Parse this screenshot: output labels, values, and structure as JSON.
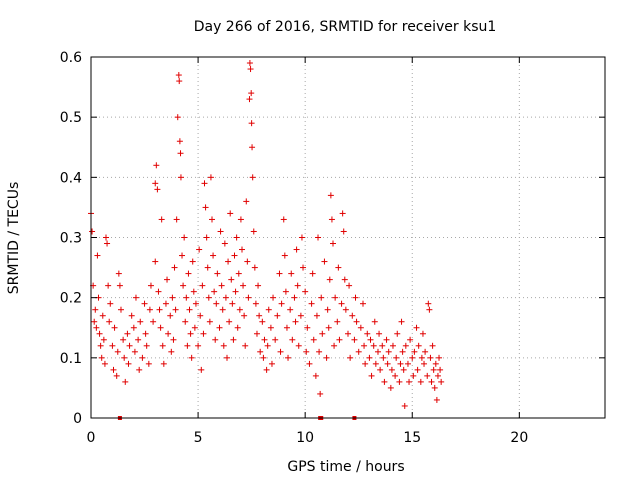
{
  "chart_data": {
    "type": "scatter",
    "title": "Day 266 of 2016, SRMTID for receiver ksu1",
    "xlabel": "GPS time / hours",
    "ylabel": "SRMTID / TECUs",
    "xlim": [
      0,
      24
    ],
    "ylim": [
      0,
      0.6
    ],
    "xticks": [
      0,
      5,
      10,
      15,
      20
    ],
    "xtick_labels": [
      "0",
      "5",
      "10",
      "15",
      "20"
    ],
    "yticks": [
      0,
      0.1,
      0.2,
      0.3,
      0.4,
      0.5,
      0.6
    ],
    "ytick_labels": [
      "0",
      "0.1",
      "0.2",
      "0.3",
      "0.4",
      "0.5",
      "0.6"
    ],
    "grid": true,
    "legend": "none",
    "marker": "plus",
    "color": "#e00000",
    "series": [
      {
        "points": [
          [
            0.0,
            0.34
          ],
          [
            0.05,
            0.31
          ],
          [
            0.1,
            0.22
          ],
          [
            0.15,
            0.16
          ],
          [
            0.2,
            0.18
          ],
          [
            0.25,
            0.15
          ],
          [
            0.3,
            0.27
          ],
          [
            0.35,
            0.2
          ],
          [
            0.4,
            0.14
          ],
          [
            0.45,
            0.12
          ],
          [
            0.5,
            0.1
          ],
          [
            0.55,
            0.17
          ],
          [
            0.6,
            0.13
          ],
          [
            0.65,
            0.09
          ],
          [
            0.7,
            0.3
          ],
          [
            0.75,
            0.29
          ],
          [
            0.8,
            0.22
          ],
          [
            0.85,
            0.16
          ],
          [
            0.9,
            0.19
          ],
          [
            1.0,
            0.12
          ],
          [
            1.05,
            0.08
          ],
          [
            1.1,
            0.15
          ],
          [
            1.2,
            0.07
          ],
          [
            1.25,
            0.11
          ],
          [
            1.3,
            0.24
          ],
          [
            1.35,
            0.22
          ],
          [
            1.4,
            0.18
          ],
          [
            1.5,
            0.13
          ],
          [
            1.55,
            0.1
          ],
          [
            1.6,
            0.06
          ],
          [
            1.7,
            0.14
          ],
          [
            1.75,
            0.09
          ],
          [
            1.8,
            0.12
          ],
          [
            1.9,
            0.17
          ],
          [
            2.0,
            0.15
          ],
          [
            2.05,
            0.11
          ],
          [
            2.1,
            0.2
          ],
          [
            2.2,
            0.13
          ],
          [
            2.25,
            0.08
          ],
          [
            2.3,
            0.16
          ],
          [
            2.4,
            0.1
          ],
          [
            2.5,
            0.19
          ],
          [
            2.55,
            0.14
          ],
          [
            2.6,
            0.12
          ],
          [
            2.7,
            0.09
          ],
          [
            2.75,
            0.18
          ],
          [
            2.8,
            0.22
          ],
          [
            2.9,
            0.16
          ],
          [
            3.0,
            0.26
          ],
          [
            3.0,
            0.39
          ],
          [
            3.05,
            0.42
          ],
          [
            3.1,
            0.38
          ],
          [
            3.15,
            0.21
          ],
          [
            3.2,
            0.18
          ],
          [
            3.25,
            0.15
          ],
          [
            3.3,
            0.33
          ],
          [
            3.35,
            0.12
          ],
          [
            3.4,
            0.09
          ],
          [
            3.5,
            0.19
          ],
          [
            3.55,
            0.23
          ],
          [
            3.6,
            0.14
          ],
          [
            3.7,
            0.17
          ],
          [
            3.75,
            0.11
          ],
          [
            3.8,
            0.2
          ],
          [
            3.85,
            0.13
          ],
          [
            3.9,
            0.25
          ],
          [
            3.95,
            0.18
          ],
          [
            4.0,
            0.33
          ],
          [
            4.05,
            0.5
          ],
          [
            4.1,
            0.57
          ],
          [
            4.12,
            0.56
          ],
          [
            4.15,
            0.46
          ],
          [
            4.18,
            0.44
          ],
          [
            4.2,
            0.4
          ],
          [
            4.25,
            0.27
          ],
          [
            4.3,
            0.22
          ],
          [
            4.35,
            0.3
          ],
          [
            4.4,
            0.16
          ],
          [
            4.45,
            0.2
          ],
          [
            4.5,
            0.12
          ],
          [
            4.55,
            0.24
          ],
          [
            4.6,
            0.18
          ],
          [
            4.65,
            0.14
          ],
          [
            4.7,
            0.1
          ],
          [
            4.75,
            0.26
          ],
          [
            4.8,
            0.21
          ],
          [
            4.85,
            0.15
          ],
          [
            4.9,
            0.19
          ],
          [
            5.0,
            0.12
          ],
          [
            5.05,
            0.28
          ],
          [
            5.1,
            0.17
          ],
          [
            5.15,
            0.08
          ],
          [
            5.2,
            0.22
          ],
          [
            5.25,
            0.14
          ],
          [
            5.3,
            0.39
          ],
          [
            5.35,
            0.35
          ],
          [
            5.4,
            0.3
          ],
          [
            5.45,
            0.25
          ],
          [
            5.5,
            0.2
          ],
          [
            5.55,
            0.16
          ],
          [
            5.6,
            0.4
          ],
          [
            5.65,
            0.33
          ],
          [
            5.7,
            0.27
          ],
          [
            5.75,
            0.21
          ],
          [
            5.8,
            0.13
          ],
          [
            5.85,
            0.19
          ],
          [
            5.9,
            0.24
          ],
          [
            6.0,
            0.15
          ],
          [
            6.05,
            0.31
          ],
          [
            6.1,
            0.22
          ],
          [
            6.15,
            0.18
          ],
          [
            6.2,
            0.12
          ],
          [
            6.25,
            0.29
          ],
          [
            6.3,
            0.2
          ],
          [
            6.35,
            0.1
          ],
          [
            6.4,
            0.26
          ],
          [
            6.45,
            0.16
          ],
          [
            6.5,
            0.34
          ],
          [
            6.55,
            0.23
          ],
          [
            6.6,
            0.19
          ],
          [
            6.65,
            0.13
          ],
          [
            6.7,
            0.27
          ],
          [
            6.75,
            0.21
          ],
          [
            6.8,
            0.3
          ],
          [
            6.85,
            0.15
          ],
          [
            6.9,
            0.24
          ],
          [
            6.95,
            0.18
          ],
          [
            7.0,
            0.33
          ],
          [
            7.05,
            0.28
          ],
          [
            7.1,
            0.22
          ],
          [
            7.15,
            0.17
          ],
          [
            7.2,
            0.12
          ],
          [
            7.25,
            0.36
          ],
          [
            7.3,
            0.26
          ],
          [
            7.35,
            0.2
          ],
          [
            7.4,
            0.53
          ],
          [
            7.42,
            0.59
          ],
          [
            7.45,
            0.58
          ],
          [
            7.48,
            0.54
          ],
          [
            7.5,
            0.49
          ],
          [
            7.52,
            0.45
          ],
          [
            7.55,
            0.4
          ],
          [
            7.6,
            0.31
          ],
          [
            7.65,
            0.25
          ],
          [
            7.7,
            0.19
          ],
          [
            7.75,
            0.14
          ],
          [
            7.8,
            0.22
          ],
          [
            7.85,
            0.17
          ],
          [
            7.9,
            0.11
          ],
          [
            8.0,
            0.16
          ],
          [
            8.05,
            0.1
          ],
          [
            8.1,
            0.13
          ],
          [
            8.2,
            0.08
          ],
          [
            8.25,
            0.12
          ],
          [
            8.3,
            0.18
          ],
          [
            8.4,
            0.15
          ],
          [
            8.45,
            0.09
          ],
          [
            8.5,
            0.2
          ],
          [
            8.6,
            0.13
          ],
          [
            8.7,
            0.17
          ],
          [
            8.8,
            0.24
          ],
          [
            8.85,
            0.11
          ],
          [
            8.9,
            0.19
          ],
          [
            9.0,
            0.33
          ],
          [
            9.05,
            0.27
          ],
          [
            9.1,
            0.21
          ],
          [
            9.15,
            0.15
          ],
          [
            9.2,
            0.1
          ],
          [
            9.3,
            0.18
          ],
          [
            9.35,
            0.24
          ],
          [
            9.4,
            0.13
          ],
          [
            9.5,
            0.2
          ],
          [
            9.55,
            0.16
          ],
          [
            9.6,
            0.28
          ],
          [
            9.65,
            0.22
          ],
          [
            9.7,
            0.12
          ],
          [
            9.8,
            0.17
          ],
          [
            9.85,
            0.3
          ],
          [
            9.9,
            0.25
          ],
          [
            10.0,
            0.21
          ],
          [
            10.05,
            0.11
          ],
          [
            10.1,
            0.15
          ],
          [
            10.2,
            0.09
          ],
          [
            10.3,
            0.19
          ],
          [
            10.35,
            0.24
          ],
          [
            10.4,
            0.13
          ],
          [
            10.5,
            0.07
          ],
          [
            10.55,
            0.17
          ],
          [
            10.6,
            0.3
          ],
          [
            10.65,
            0.11
          ],
          [
            10.7,
            0.04
          ],
          [
            10.75,
            0.2
          ],
          [
            10.8,
            0.14
          ],
          [
            10.9,
            0.26
          ],
          [
            11.0,
            0.1
          ],
          [
            11.05,
            0.18
          ],
          [
            11.1,
            0.15
          ],
          [
            11.15,
            0.23
          ],
          [
            11.2,
            0.37
          ],
          [
            11.25,
            0.33
          ],
          [
            11.3,
            0.29
          ],
          [
            11.35,
            0.12
          ],
          [
            11.4,
            0.2
          ],
          [
            11.5,
            0.16
          ],
          [
            11.55,
            0.25
          ],
          [
            11.6,
            0.13
          ],
          [
            11.7,
            0.19
          ],
          [
            11.75,
            0.34
          ],
          [
            11.8,
            0.31
          ],
          [
            11.85,
            0.23
          ],
          [
            11.9,
            0.18
          ],
          [
            12.0,
            0.14
          ],
          [
            12.05,
            0.22
          ],
          [
            12.1,
            0.1
          ],
          [
            12.2,
            0.17
          ],
          [
            12.3,
            0.13
          ],
          [
            12.35,
            0.2
          ],
          [
            12.4,
            0.16
          ],
          [
            12.5,
            0.11
          ],
          [
            12.6,
            0.15
          ],
          [
            12.7,
            0.19
          ],
          [
            12.75,
            0.12
          ],
          [
            12.8,
            0.09
          ],
          [
            12.9,
            0.14
          ],
          [
            13.0,
            0.1
          ],
          [
            13.05,
            0.13
          ],
          [
            13.1,
            0.07
          ],
          [
            13.2,
            0.12
          ],
          [
            13.25,
            0.16
          ],
          [
            13.3,
            0.09
          ],
          [
            13.4,
            0.11
          ],
          [
            13.45,
            0.14
          ],
          [
            13.5,
            0.08
          ],
          [
            13.6,
            0.12
          ],
          [
            13.65,
            0.1
          ],
          [
            13.7,
            0.06
          ],
          [
            13.8,
            0.13
          ],
          [
            13.85,
            0.09
          ],
          [
            13.9,
            0.11
          ],
          [
            14.0,
            0.05
          ],
          [
            14.05,
            0.08
          ],
          [
            14.1,
            0.12
          ],
          [
            14.2,
            0.07
          ],
          [
            14.25,
            0.1
          ],
          [
            14.3,
            0.14
          ],
          [
            14.4,
            0.06
          ],
          [
            14.45,
            0.09
          ],
          [
            14.5,
            0.16
          ],
          [
            14.55,
            0.11
          ],
          [
            14.6,
            0.08
          ],
          [
            14.65,
            0.02
          ],
          [
            14.7,
            0.12
          ],
          [
            14.8,
            0.09
          ],
          [
            14.85,
            0.06
          ],
          [
            14.9,
            0.13
          ],
          [
            15.0,
            0.1
          ],
          [
            15.05,
            0.07
          ],
          [
            15.1,
            0.11
          ],
          [
            15.2,
            0.15
          ],
          [
            15.25,
            0.08
          ],
          [
            15.3,
            0.12
          ],
          [
            15.4,
            0.06
          ],
          [
            15.45,
            0.1
          ],
          [
            15.5,
            0.14
          ],
          [
            15.55,
            0.09
          ],
          [
            15.6,
            0.11
          ],
          [
            15.7,
            0.07
          ],
          [
            15.75,
            0.19
          ],
          [
            15.8,
            0.18
          ],
          [
            15.85,
            0.1
          ],
          [
            15.9,
            0.06
          ],
          [
            15.95,
            0.12
          ],
          [
            16.0,
            0.08
          ],
          [
            16.05,
            0.05
          ],
          [
            16.1,
            0.09
          ],
          [
            16.15,
            0.03
          ],
          [
            16.2,
            0.07
          ],
          [
            16.25,
            0.1
          ],
          [
            16.3,
            0.08
          ],
          [
            16.35,
            0.06
          ]
        ]
      }
    ],
    "rug_x": [
      1.35,
      10.7,
      10.75,
      12.3
    ]
  }
}
